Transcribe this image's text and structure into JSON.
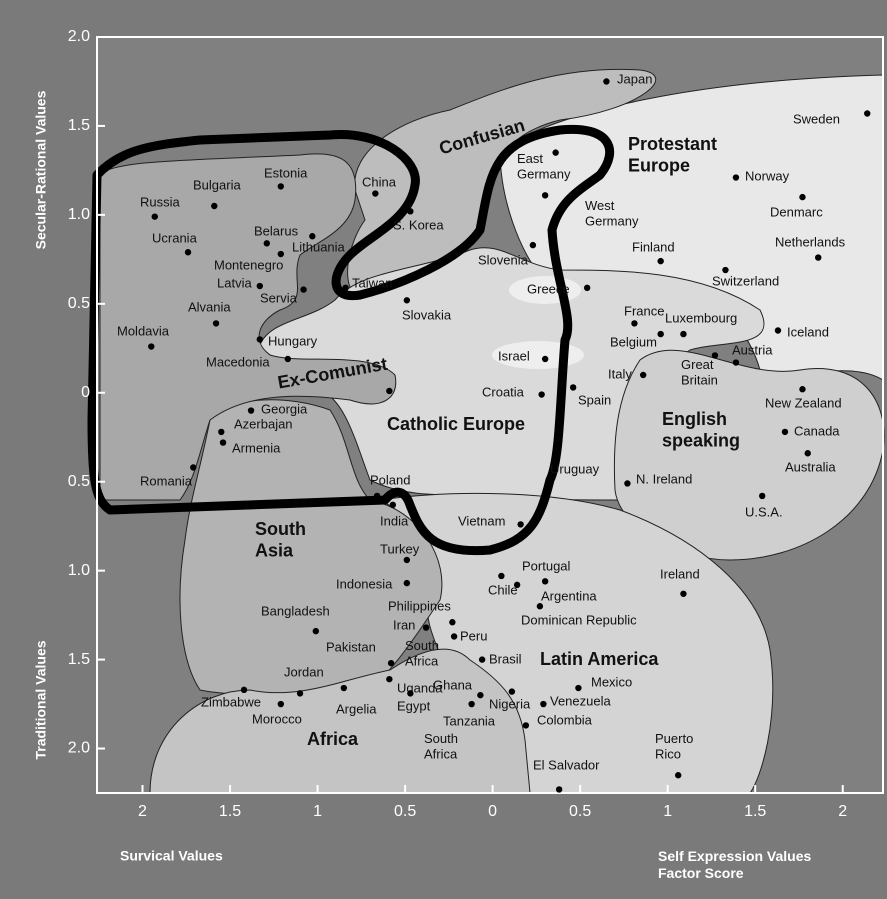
{
  "chart_data": {
    "type": "scatter",
    "xlabel_left": "Survical Values",
    "xlabel_right": "Self Expression Values\nFactor Score",
    "ylabel_top": "Secular-Rational Values",
    "ylabel_bottom": "Traditional Values",
    "xlim": [
      -2.26,
      2.23
    ],
    "ylim": [
      -2.25,
      2.0
    ],
    "xticks": [
      {
        "value": -2,
        "label": "2"
      },
      {
        "value": -1.5,
        "label": "1.5"
      },
      {
        "value": -1,
        "label": "1"
      },
      {
        "value": -0.5,
        "label": "0.5"
      },
      0,
      0.5,
      1,
      1.5,
      2
    ],
    "yticks": [
      {
        "value": 2,
        "label": "2.0"
      },
      1.5,
      {
        "value": 1,
        "label": "1.0"
      },
      0.5,
      0,
      {
        "value": -0.5,
        "label": "0.5"
      },
      {
        "value": -1,
        "label": "1.0"
      },
      {
        "value": -1.5,
        "label": "1.5"
      },
      {
        "value": -2,
        "label": "2.0"
      }
    ],
    "zones": [
      "Confusian",
      "Protestant\nEurope",
      "Catholic Europe",
      "English\nspeaking",
      "Latin America",
      "South\nAsia",
      "Africa",
      "Ex-Comunist"
    ],
    "annotations": [
      "Pakistan",
      "South\nAfrica"
    ],
    "points": [
      {
        "name": "Japan",
        "x": 0.65,
        "y": 1.75
      },
      {
        "name": "Sweden",
        "x": 2.14,
        "y": 1.57
      },
      {
        "name": "East\nGermany",
        "x": 0.36,
        "y": 1.35
      },
      {
        "name": "Norway",
        "x": 1.39,
        "y": 1.21
      },
      {
        "name": "China",
        "x": -0.67,
        "y": 1.12
      },
      {
        "name": "West\nGermany",
        "x": 0.3,
        "y": 1.11
      },
      {
        "name": "Denmarc",
        "x": 1.77,
        "y": 1.1
      },
      {
        "name": "Bulgaria",
        "x": -1.59,
        "y": 1.05
      },
      {
        "name": "Estonia",
        "x": -1.21,
        "y": 1.16
      },
      {
        "name": "Russia",
        "x": -1.93,
        "y": 0.99
      },
      {
        "name": "S. Korea",
        "x": -0.47,
        "y": 1.02
      },
      {
        "name": "Belarus",
        "x": -1.29,
        "y": 0.84
      },
      {
        "name": "Lithuania",
        "x": -1.03,
        "y": 0.88
      },
      {
        "name": "Ucrania",
        "x": -1.74,
        "y": 0.79
      },
      {
        "name": "Slovenia",
        "x": 0.23,
        "y": 0.83
      },
      {
        "name": "Netherlands",
        "x": 1.86,
        "y": 0.76
      },
      {
        "name": "Montenegro",
        "x": -1.21,
        "y": 0.78
      },
      {
        "name": "Finland",
        "x": 0.96,
        "y": 0.74
      },
      {
        "name": "Switzerland",
        "x": 1.33,
        "y": 0.69
      },
      {
        "name": "Latvia",
        "x": -1.33,
        "y": 0.6
      },
      {
        "name": "Taiwan",
        "x": -0.84,
        "y": 0.59
      },
      {
        "name": "Greece",
        "x": 0.54,
        "y": 0.59
      },
      {
        "name": "Servia",
        "x": -1.08,
        "y": 0.58
      },
      {
        "name": "Slovakia",
        "x": -0.49,
        "y": 0.52
      },
      {
        "name": "Alvania",
        "x": -1.58,
        "y": 0.39
      },
      {
        "name": "France",
        "x": 0.81,
        "y": 0.39
      },
      {
        "name": "Luxembourg",
        "x": 1.09,
        "y": 0.33
      },
      {
        "name": "Belgium",
        "x": 0.96,
        "y": 0.33
      },
      {
        "name": "Iceland",
        "x": 1.63,
        "y": 0.35
      },
      {
        "name": "Hungary",
        "x": -1.33,
        "y": 0.3
      },
      {
        "name": "Moldavia",
        "x": -1.95,
        "y": 0.26
      },
      {
        "name": "Austria",
        "x": 1.39,
        "y": 0.17
      },
      {
        "name": "Great\nBritain",
        "x": 1.27,
        "y": 0.21
      },
      {
        "name": "Macedonia",
        "x": -1.17,
        "y": 0.19
      },
      {
        "name": "Israel",
        "x": 0.3,
        "y": 0.19
      },
      {
        "name": "Italy",
        "x": 0.86,
        "y": 0.1
      },
      {
        "name": "Spain",
        "x": 0.46,
        "y": 0.03
      },
      {
        "name": "New Zealand",
        "x": 1.77,
        "y": 0.02
      },
      {
        "name": null,
        "x": -0.59,
        "y": 0.01
      },
      {
        "name": "Croatia",
        "x": 0.28,
        "y": -0.01
      },
      {
        "name": "Georgia",
        "x": -1.38,
        "y": -0.1
      },
      {
        "name": "Canada",
        "x": 1.67,
        "y": -0.22
      },
      {
        "name": "Azerbajan",
        "x": -1.55,
        "y": -0.22
      },
      {
        "name": "Armenia",
        "x": -1.54,
        "y": -0.28
      },
      {
        "name": "Uruguay",
        "x": 0.37,
        "y": -0.35
      },
      {
        "name": "Australia",
        "x": 1.8,
        "y": -0.34
      },
      {
        "name": "Romania",
        "x": -1.71,
        "y": -0.42
      },
      {
        "name": "N. Ireland",
        "x": 0.77,
        "y": -0.51
      },
      {
        "name": "U.S.A.",
        "x": 1.54,
        "y": -0.58
      },
      {
        "name": "Poland",
        "x": -0.66,
        "y": -0.58
      },
      {
        "name": "India",
        "x": -0.57,
        "y": -0.63
      },
      {
        "name": "Vietnam",
        "x": 0.16,
        "y": -0.74
      },
      {
        "name": "Turkey",
        "x": -0.49,
        "y": -0.94
      },
      {
        "name": "Chile",
        "x": 0.05,
        "y": -1.03
      },
      {
        "name": "Portugal",
        "x": 0.14,
        "y": -1.08
      },
      {
        "name": "Argentina",
        "x": 0.3,
        "y": -1.06
      },
      {
        "name": "Indonesia",
        "x": -0.49,
        "y": -1.07
      },
      {
        "name": "Ireland",
        "x": 1.09,
        "y": -1.13
      },
      {
        "name": "Dominican Republic",
        "x": 0.27,
        "y": -1.2
      },
      {
        "name": "Bangladesh",
        "x": -1.01,
        "y": -1.34
      },
      {
        "name": "Philippines",
        "x": -0.23,
        "y": -1.29
      },
      {
        "name": "Iran",
        "x": -0.38,
        "y": -1.32
      },
      {
        "name": "Peru",
        "x": -0.22,
        "y": -1.37
      },
      {
        "name": "South\nAfrica",
        "x": -0.58,
        "y": -1.52
      },
      {
        "name": "Brasil",
        "x": -0.06,
        "y": -1.5
      },
      {
        "name": "Uganda",
        "x": -0.59,
        "y": -1.61
      },
      {
        "name": "Mexico",
        "x": 0.49,
        "y": -1.66
      },
      {
        "name": "Zimbabwe",
        "x": -1.42,
        "y": -1.67
      },
      {
        "name": "Jordan",
        "x": -1.1,
        "y": -1.69
      },
      {
        "name": "Argelia",
        "x": -0.85,
        "y": -1.66
      },
      {
        "name": "Egypt",
        "x": -0.47,
        "y": -1.69
      },
      {
        "name": "Nigeria",
        "x": 0.11,
        "y": -1.68
      },
      {
        "name": "Ghana",
        "x": -0.07,
        "y": -1.7
      },
      {
        "name": "Venezuela",
        "x": 0.29,
        "y": -1.75
      },
      {
        "name": "Morocco",
        "x": -1.21,
        "y": -1.75
      },
      {
        "name": "Tanzania",
        "x": -0.12,
        "y": -1.75
      },
      {
        "name": "Colombia",
        "x": 0.19,
        "y": -1.87
      },
      {
        "name": "Puerto\nRico",
        "x": 1.06,
        "y": -2.15
      },
      {
        "name": "El Salvador",
        "x": 0.38,
        "y": -2.23
      }
    ]
  }
}
